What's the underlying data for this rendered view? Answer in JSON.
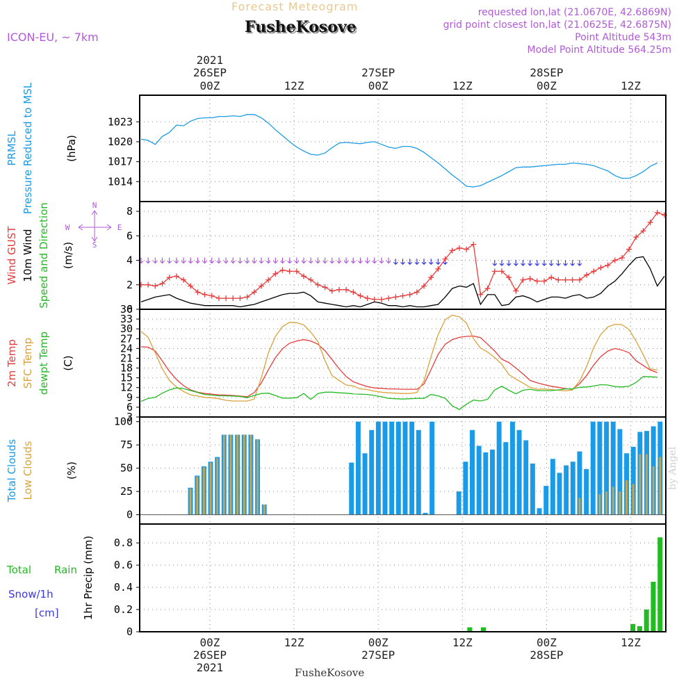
{
  "header": {
    "forecast_title": "Forecast Meteogram",
    "location": "FusheKosove",
    "model": "ICON-EU, ~ 7km",
    "requested": "requested lon,lat (21.0670E, 42.6869N)",
    "closest": "grid point closest lon,lat (21.0625E, 42.6875N)",
    "point_alt": "Point Altitude 543m",
    "model_alt": "Model Point Altitude 564.25m",
    "credit": "by Angel",
    "footer_location": "FusheKosove"
  },
  "colors": {
    "blue": "#1a9be8",
    "red": "#e63c3c",
    "orange": "#d9a23a",
    "green": "#22bb22",
    "purple": "#b05ad8",
    "navy": "#3838e0",
    "black": "#000000"
  },
  "chart_data": {
    "type": "meteogram",
    "hours": 67,
    "time_axis": {
      "top_year": "2021",
      "ticks": [
        {
          "hour": 10,
          "label": "00Z",
          "date": "26SEP"
        },
        {
          "hour": 22,
          "label": "12Z",
          "date": ""
        },
        {
          "hour": 34,
          "label": "00Z",
          "date": "27SEP"
        },
        {
          "hour": 46,
          "label": "12Z",
          "date": ""
        },
        {
          "hour": 58,
          "label": "00Z",
          "date": "28SEP"
        },
        {
          "hour": 70,
          "label": "12Z",
          "date": ""
        }
      ]
    },
    "panels": [
      {
        "id": "pressure",
        "type": "line",
        "labels": [
          "PRMSL",
          "Pressure Reduced to MSL"
        ],
        "unit": "(hPa)",
        "ylim": [
          1011,
          1027
        ],
        "yticks": [
          1014,
          1017,
          1020,
          1023
        ],
        "series": [
          {
            "name": "PRMSL",
            "color": "blue",
            "values": [
              1020.4,
              1020.2,
              1019.6,
              1020.8,
              1021.4,
              1022.5,
              1022.4,
              1023.1,
              1023.5,
              1023.6,
              1023.6,
              1023.8,
              1023.8,
              1023.9,
              1023.8,
              1024.1,
              1024.1,
              1023.6,
              1022.8,
              1021.8,
              1020.9,
              1020.0,
              1019.2,
              1018.6,
              1018.1,
              1018.0,
              1018.3,
              1019.1,
              1019.8,
              1019.9,
              1019.8,
              1019.7,
              1019.9,
              1020.0,
              1019.6,
              1019.2,
              1019.0,
              1019.3,
              1019.3,
              1019.0,
              1018.4,
              1017.6,
              1016.8,
              1015.9,
              1015.0,
              1014.2,
              1013.3,
              1013.2,
              1013.4,
              1013.9,
              1014.4,
              1014.9,
              1015.5,
              1016.1,
              1016.2,
              1016.2,
              1016.3,
              1016.4,
              1016.5,
              1016.6,
              1016.6,
              1016.8,
              1016.7,
              1016.6,
              1016.4,
              1016.0,
              1015.6,
              1014.9,
              1014.5,
              1014.5,
              1014.9,
              1015.5,
              1016.3,
              1016.8
            ]
          }
        ]
      },
      {
        "id": "wind",
        "type": "line",
        "labels": [
          "Wind GUST",
          "10m Wind",
          "Speed and Direction"
        ],
        "unit": "(m/s)",
        "compass": {
          "n": "N",
          "s": "S",
          "w": "W",
          "e": "E"
        },
        "ylim": [
          0,
          8.8
        ],
        "yticks": [
          0,
          2,
          4,
          6,
          8
        ],
        "series": [
          {
            "name": "Wind GUST",
            "color": "red",
            "marker": "+",
            "values": [
              2.0,
              2.0,
              1.9,
              2.1,
              2.6,
              2.7,
              2.4,
              1.9,
              1.4,
              1.2,
              1.1,
              0.9,
              0.9,
              0.9,
              0.9,
              1.0,
              1.4,
              1.9,
              2.4,
              2.9,
              3.2,
              3.1,
              3.1,
              2.7,
              2.4,
              2.0,
              1.8,
              1.5,
              1.6,
              1.6,
              1.4,
              1.1,
              0.9,
              0.8,
              0.8,
              0.9,
              1.0,
              1.1,
              1.2,
              1.4,
              1.9,
              2.6,
              3.3,
              4.1,
              4.8,
              5.0,
              4.9,
              5.3,
              1.2,
              1.7,
              3.1,
              3.1,
              2.6,
              1.5,
              2.4,
              2.5,
              2.3,
              2.3,
              2.6,
              2.4,
              2.4,
              2.4,
              2.4,
              2.8,
              3.1,
              3.4,
              3.6,
              4.0,
              4.2,
              4.9,
              5.9,
              6.4,
              7.1,
              7.9,
              7.7
            ]
          },
          {
            "name": "10m Wind",
            "color": "black",
            "values": [
              0.6,
              0.8,
              1.0,
              1.1,
              1.2,
              0.9,
              0.7,
              0.5,
              0.4,
              0.3,
              0.3,
              0.3,
              0.3,
              0.3,
              0.2,
              0.3,
              0.4,
              0.6,
              0.8,
              1.0,
              1.2,
              1.3,
              1.3,
              1.4,
              1.1,
              0.6,
              0.5,
              0.4,
              0.3,
              0.2,
              0.3,
              0.2,
              0.4,
              0.6,
              0.5,
              0.3,
              0.3,
              0.2,
              0.3,
              0.2,
              0.2,
              0.3,
              0.4,
              1.0,
              1.7,
              1.9,
              1.8,
              2.1,
              0.4,
              1.2,
              1.2,
              0.3,
              0.4,
              1.0,
              1.1,
              0.9,
              0.6,
              0.8,
              1.0,
              1.0,
              0.9,
              1.1,
              1.2,
              0.9,
              1.0,
              1.3,
              1.9,
              2.3,
              2.9,
              3.6,
              4.2,
              4.3,
              3.3,
              1.9,
              2.7
            ]
          }
        ],
        "arrow_rows": [
          {
            "color": "purple",
            "y": 4.0,
            "from": 0,
            "to": 36
          },
          {
            "color": "navy",
            "y": 3.9,
            "from": 36,
            "to": 44
          },
          {
            "color": "navy",
            "y": 3.8,
            "from": 50,
            "to": 63
          }
        ]
      },
      {
        "id": "temp",
        "type": "line",
        "labels": [
          "2m Temp",
          "SFC Temp",
          "dewpt Temp"
        ],
        "unit": "(C)",
        "ylim": [
          3,
          36
        ],
        "yticks": [
          3,
          6,
          9,
          12,
          15,
          18,
          21,
          24,
          27,
          30,
          33,
          36
        ],
        "series": [
          {
            "name": "2m Temp",
            "color": "red",
            "values": [
              24.5,
              24.4,
              23.2,
              20.2,
              17.0,
              14.5,
              12.6,
              11.3,
              10.6,
              10.2,
              10.0,
              9.8,
              9.7,
              9.6,
              9.4,
              9.2,
              10.5,
              13.4,
              17.5,
              21.2,
              23.9,
              25.6,
              26.3,
              26.7,
              26.3,
              25.3,
              23.3,
              20.6,
              17.8,
              15.4,
              13.8,
              13.0,
              12.3,
              11.9,
              11.8,
              11.6,
              11.6,
              11.5,
              11.5,
              11.5,
              13.1,
              17.5,
              22.2,
              25.3,
              26.7,
              27.4,
              27.7,
              27.8,
              27.3,
              25.3,
              23.2,
              20.7,
              19.7,
              18.0,
              16.2,
              14.2,
              13.5,
              12.9,
              12.4,
              12.1,
              11.7,
              11.5,
              13.2,
              15.7,
              18.9,
              21.5,
              23.2,
              24.0,
              23.5,
              22.7,
              20.2,
              18.8,
              17.4,
              16.6
            ]
          },
          {
            "name": "SFC Temp",
            "color": "orange",
            "values": [
              29.2,
              27.4,
              22.6,
              17.8,
              14.2,
              12.2,
              10.8,
              9.8,
              9.4,
              9.0,
              8.9,
              8.6,
              8.1,
              7.9,
              7.9,
              7.9,
              8.5,
              15.0,
              22.7,
              27.7,
              30.7,
              32.0,
              31.9,
              31.2,
              29.0,
              26.1,
              20.3,
              15.7,
              14.2,
              12.8,
              12.5,
              11.6,
              11.4,
              10.9,
              10.6,
              10.4,
              10.3,
              10.2,
              10.2,
              10.5,
              14.0,
              21.5,
              28.2,
              32.8,
              34.2,
              33.7,
              31.8,
              27.0,
              24.1,
              22.9,
              21.2,
              19.2,
              16.0,
              14.6,
              13.4,
              12.1,
              11.5,
              11.6,
              11.4,
              11.2,
              11.0,
              11.3,
              14.0,
              18.5,
              24.3,
              28.3,
              30.6,
              31.4,
              31.3,
              29.8,
              26.2,
              22.1,
              17.7,
              17.4
            ]
          },
          {
            "name": "dewpt Temp",
            "color": "green",
            "values": [
              7.8,
              8.7,
              9.0,
              10.3,
              11.3,
              11.9,
              11.7,
              11.1,
              10.5,
              9.9,
              9.7,
              9.5,
              9.5,
              9.4,
              9.3,
              8.9,
              9.6,
              10.2,
              10.3,
              9.6,
              8.8,
              8.8,
              8.9,
              10.2,
              8.4,
              10.2,
              10.6,
              10.6,
              10.4,
              10.3,
              10.1,
              10.0,
              9.9,
              9.6,
              9.2,
              8.7,
              8.6,
              8.5,
              8.6,
              8.7,
              8.7,
              9.9,
              9.5,
              8.7,
              6.4,
              5.3,
              6.9,
              8.2,
              7.9,
              8.4,
              11.3,
              12.4,
              11.2,
              10.1,
              11.2,
              11.5,
              11.1,
              11.1,
              11.1,
              11.3,
              11.6,
              11.6,
              12.1,
              12.2,
              12.5,
              12.9,
              12.8,
              12.3,
              12.2,
              12.4,
              13.6,
              15.4,
              15.3,
              15.2
            ]
          }
        ]
      },
      {
        "id": "clouds",
        "type": "bar",
        "labels": [
          "Total Clouds",
          "Low Clouds"
        ],
        "unit": "(%)",
        "ylim": [
          -10,
          105
        ],
        "yticks": [
          0,
          25,
          50,
          75,
          100
        ],
        "series": [
          {
            "name": "Total Clouds",
            "color": "blue",
            "values": [
              0,
              0,
              0,
              0,
              0,
              0,
              0,
              29,
              42,
              52,
              57,
              62,
              86,
              86,
              86,
              86,
              86,
              81,
              11,
              0,
              0,
              0,
              0,
              0,
              0,
              0,
              0,
              0,
              0,
              0,
              0,
              56,
              100,
              66,
              91,
              100,
              100,
              100,
              100,
              100,
              100,
              91,
              2,
              100,
              0,
              0,
              0,
              25,
              57,
              91,
              74,
              67,
              70,
              100,
              78,
              100,
              91,
              80,
              55,
              7,
              31,
              60,
              45,
              53,
              57,
              68,
              49,
              100,
              100,
              100,
              100,
              92,
              66,
              73,
              89,
              90,
              95,
              100
            ]
          },
          {
            "name": "Low Clouds",
            "color": "orange",
            "values": [
              0,
              0,
              0,
              0,
              0,
              0,
              0,
              28,
              41,
              51,
              56,
              61,
              86,
              86,
              86,
              86,
              86,
              81,
              11,
              0,
              0,
              0,
              0,
              0,
              0,
              0,
              0,
              0,
              0,
              0,
              0,
              0,
              0,
              0,
              0,
              0,
              0,
              0,
              0,
              0,
              0,
              0,
              0,
              0,
              0,
              0,
              0,
              0,
              0,
              0,
              0,
              0,
              0,
              0,
              0,
              0,
              0,
              0,
              0,
              0,
              0,
              0,
              0,
              0,
              0,
              18,
              0,
              0,
              22,
              25,
              30,
              25,
              37,
              33,
              65,
              65,
              52,
              62
            ]
          }
        ]
      },
      {
        "id": "precip",
        "type": "bar",
        "labels": [
          "Total",
          "Rain",
          "Snow/1h",
          "[cm]"
        ],
        "unit": "1hr Precip (mm)",
        "ylim": [
          0,
          0.97
        ],
        "yticks": [
          0,
          0.2,
          0.4,
          0.6,
          0.8
        ],
        "series": [
          {
            "name": "Total Rain",
            "color": "green",
            "values": [
              0,
              0,
              0,
              0,
              0,
              0,
              0,
              0,
              0,
              0,
              0,
              0,
              0,
              0,
              0,
              0,
              0,
              0,
              0,
              0,
              0,
              0,
              0,
              0,
              0,
              0,
              0,
              0,
              0,
              0,
              0,
              0,
              0,
              0,
              0,
              0,
              0,
              0,
              0,
              0,
              0,
              0,
              0,
              0,
              0,
              0,
              0,
              0,
              0.04,
              0,
              0.04,
              0,
              0,
              0,
              0,
              0,
              0,
              0,
              0,
              0,
              0,
              0,
              0,
              0,
              0,
              0,
              0,
              0,
              0,
              0,
              0,
              0,
              0.07,
              0.05,
              0.2,
              0.45,
              0.85
            ]
          }
        ]
      }
    ]
  }
}
